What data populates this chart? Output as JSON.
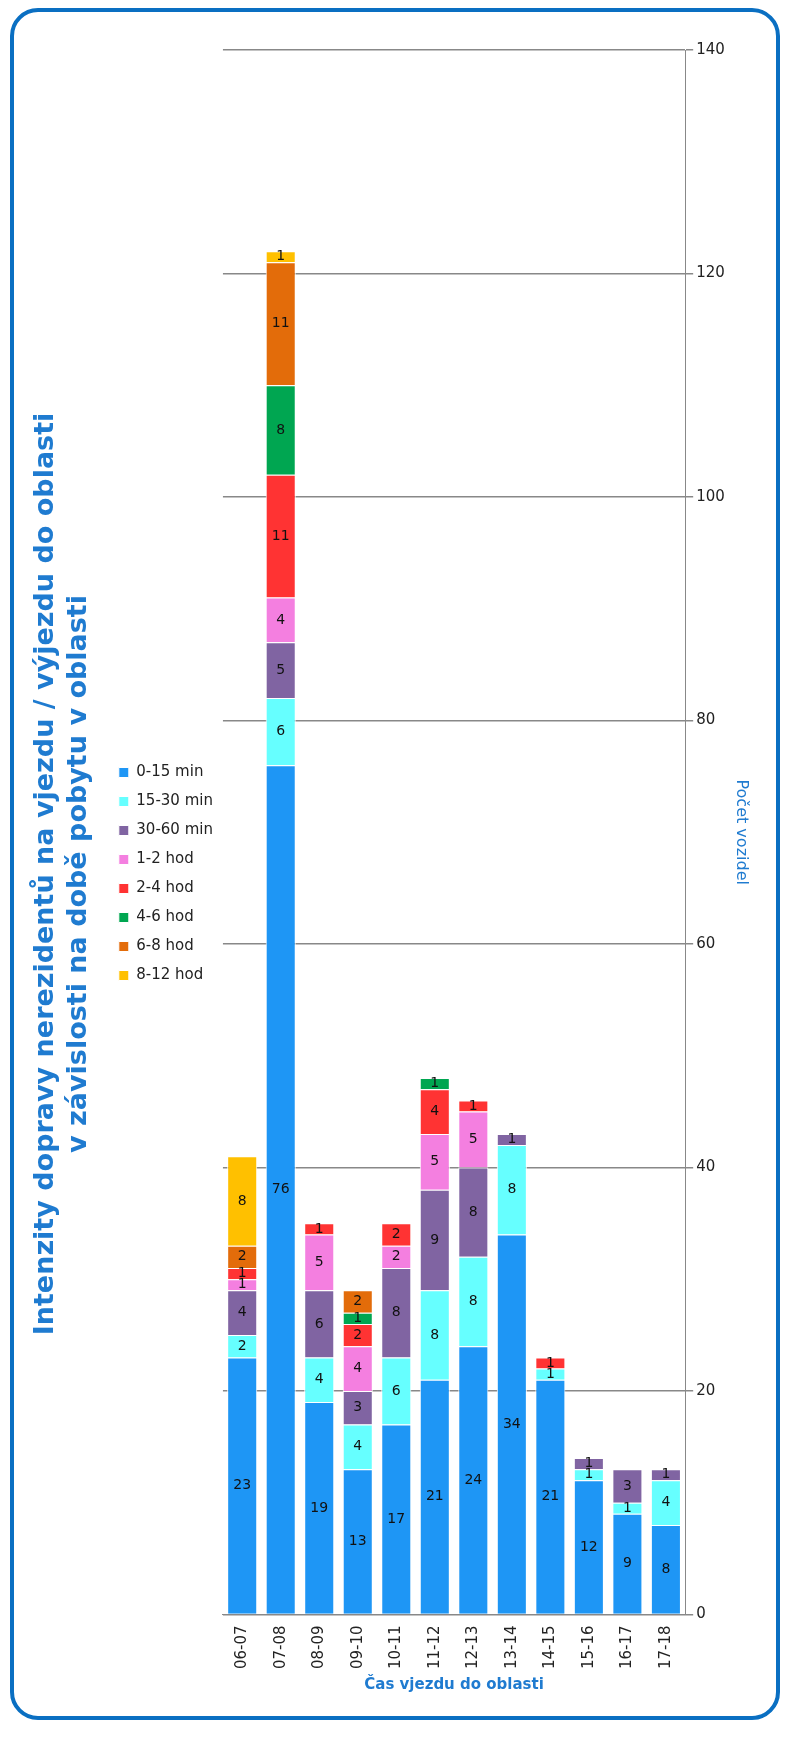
{
  "chart_data": {
    "type": "bar",
    "stacked": true,
    "title": [
      "Intenzity dopravy nerezidentů na vjezdu / výjezdu do oblasti",
      "v závislosti na době pobytu v oblasti"
    ],
    "xlabel": "Čas vjezdu do oblasti",
    "ylabel": "Počet vozidel",
    "categories": [
      "06-07",
      "07-08",
      "08-09",
      "09-10",
      "10-11",
      "11-12",
      "12-13",
      "13-14",
      "14-15",
      "15-16",
      "16-17",
      "17-18"
    ],
    "series": [
      {
        "name": "0-15 min",
        "color": "#1e96f5",
        "values": [
          23,
          76,
          19,
          13,
          17,
          21,
          24,
          34,
          21,
          12,
          9,
          8
        ]
      },
      {
        "name": "15-30 min",
        "color": "#66ffff",
        "values": [
          2,
          6,
          4,
          4,
          6,
          8,
          8,
          8,
          1,
          1,
          1,
          4
        ]
      },
      {
        "name": "30-60 min",
        "color": "#8064a2",
        "values": [
          4,
          5,
          6,
          3,
          8,
          9,
          8,
          1,
          null,
          1,
          3,
          1
        ]
      },
      {
        "name": "1-2 hod",
        "color": "#f47fe0",
        "values": [
          1,
          4,
          5,
          4,
          2,
          5,
          5,
          null,
          null,
          null,
          null,
          null
        ]
      },
      {
        "name": "2-4 hod",
        "color": "#ff3333",
        "values": [
          1,
          11,
          1,
          2,
          2,
          4,
          1,
          null,
          1,
          null,
          null,
          null
        ]
      },
      {
        "name": "4-6 hod",
        "color": "#00a651",
        "values": [
          null,
          8,
          null,
          1,
          null,
          1,
          null,
          null,
          null,
          null,
          null,
          null
        ]
      },
      {
        "name": "6-8 hod",
        "color": "#e36c0a",
        "values": [
          2,
          11,
          null,
          2,
          null,
          null,
          null,
          null,
          null,
          null,
          null,
          null
        ]
      },
      {
        "name": "8-12 hod",
        "color": "#ffc000",
        "values": [
          8,
          1,
          null,
          null,
          null,
          null,
          null,
          null,
          null,
          null,
          null,
          null
        ]
      }
    ],
    "ylim": [
      0,
      140
    ],
    "yticks": [
      0,
      20,
      40,
      60,
      80,
      100,
      120,
      140
    ],
    "grid": "y",
    "legend": "left",
    "data_labels": true
  }
}
